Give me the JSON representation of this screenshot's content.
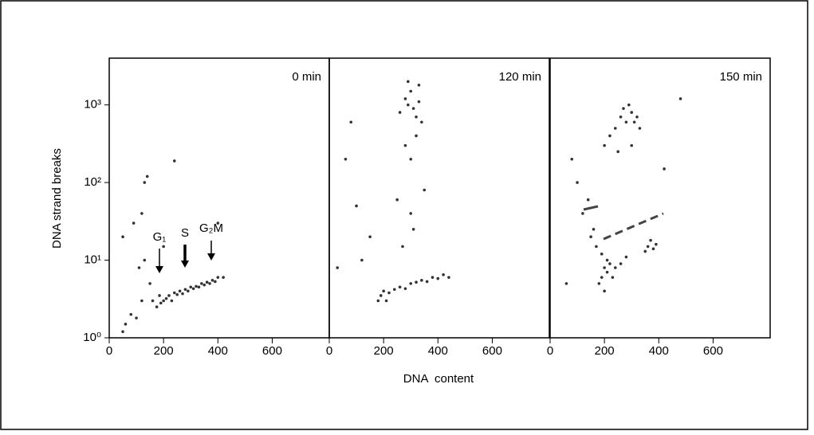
{
  "chart_data": [
    {
      "type": "scatter",
      "title": "0 min",
      "ylabel": "DNA strand breaks",
      "log": "y",
      "color": "#333333",
      "annotations": [
        "G₁",
        "S",
        "G₂M"
      ],
      "xlim": [
        0,
        810
      ],
      "xticks": [
        0,
        200,
        400,
        600
      ],
      "ylim": [
        1,
        4000
      ],
      "yticks": [
        {
          "value": 1,
          "label": "10⁰"
        },
        {
          "value": 10,
          "label": "10¹"
        },
        {
          "value": 100,
          "label": "10²"
        },
        {
          "value": 1000,
          "label": "10³"
        }
      ],
      "x": [
        160,
        175,
        185,
        190,
        200,
        210,
        220,
        230,
        240,
        250,
        260,
        270,
        280,
        290,
        300,
        310,
        320,
        330,
        340,
        350,
        360,
        370,
        380,
        390,
        400,
        420,
        60,
        80,
        100,
        120,
        130,
        150,
        140,
        50,
        90,
        110,
        130,
        240,
        120,
        200,
        400,
        50
      ],
      "values": [
        3,
        2.5,
        3.5,
        2.8,
        3,
        3.2,
        3.5,
        3,
        3.8,
        3.6,
        4,
        3.7,
        4.2,
        4,
        4.5,
        4.3,
        4.6,
        4.5,
        5,
        4.8,
        5.2,
        5,
        5.5,
        5.3,
        6,
        6,
        1.5,
        2,
        1.8,
        3,
        10,
        5,
        120,
        1.2,
        30,
        8,
        100,
        190,
        40,
        15,
        30,
        20
      ]
    },
    {
      "type": "scatter",
      "title": "120 min",
      "xlabel": "DNA  content",
      "log": "y",
      "color": "#333333",
      "xlim": [
        0,
        810
      ],
      "xticks": [
        0,
        200,
        400,
        600
      ],
      "ylim": [
        1,
        4000
      ],
      "x": [
        180,
        190,
        200,
        210,
        220,
        240,
        260,
        280,
        300,
        320,
        340,
        360,
        380,
        400,
        420,
        440,
        260,
        280,
        290,
        300,
        310,
        320,
        330,
        340,
        280,
        300,
        320,
        250,
        300,
        350,
        60,
        100,
        150,
        80,
        120,
        30,
        270,
        310,
        290,
        330
      ],
      "values": [
        3,
        3.5,
        4,
        3,
        3.8,
        4.2,
        4.5,
        4.3,
        5,
        5.2,
        5.5,
        5.3,
        6,
        5.8,
        6.5,
        6,
        800,
        1200,
        1000,
        1500,
        900,
        700,
        1100,
        600,
        300,
        200,
        400,
        60,
        40,
        80,
        200,
        50,
        20,
        600,
        10,
        8,
        15,
        25,
        2000,
        1800
      ]
    },
    {
      "type": "scatter",
      "title": "150 min",
      "log": "y",
      "color": "#333333",
      "xlim": [
        0,
        810
      ],
      "xticks": [
        0,
        200,
        400,
        600
      ],
      "ylim": [
        1,
        4000
      ],
      "x": [
        180,
        190,
        200,
        210,
        220,
        230,
        200,
        210,
        190,
        240,
        260,
        280,
        360,
        370,
        380,
        390,
        350,
        200,
        220,
        240,
        260,
        280,
        300,
        320,
        250,
        270,
        290,
        310,
        330,
        100,
        120,
        80,
        150,
        60,
        140,
        160,
        170,
        300,
        420,
        480
      ],
      "values": [
        5,
        6,
        8,
        7,
        9,
        6,
        4,
        10,
        12,
        8,
        9,
        11,
        15,
        18,
        14,
        16,
        13,
        300,
        400,
        500,
        700,
        600,
        800,
        700,
        250,
        900,
        1000,
        600,
        500,
        100,
        40,
        200,
        20,
        5,
        60,
        25,
        15,
        300,
        150,
        1200
      ]
    }
  ]
}
